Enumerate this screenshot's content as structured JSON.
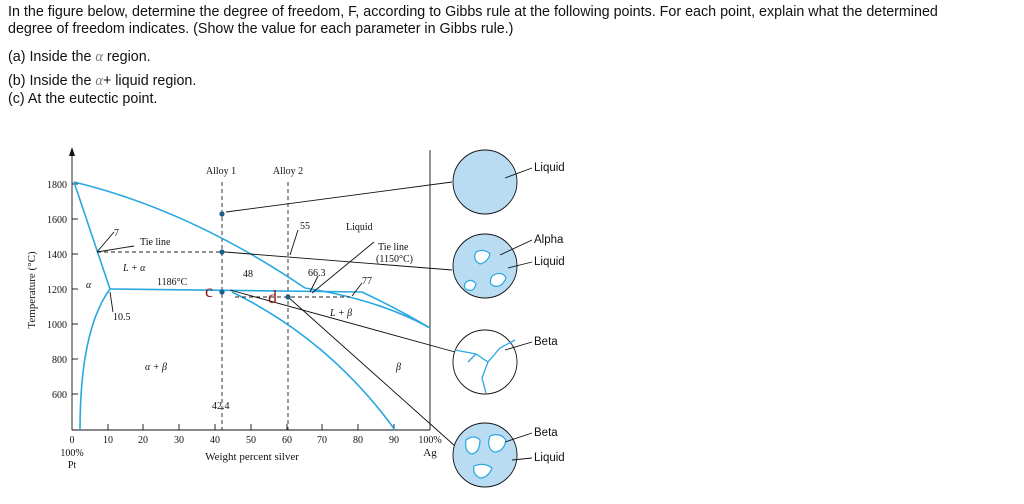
{
  "question": {
    "line1": "In the figure below, determine the degree of freedom, F, according to Gibbs rule at the following points. For each point, explain what the determined",
    "line2": "degree of freedom indicates. (Show the value for each parameter in Gibbs rule.)",
    "a_prefix": "(a) Inside the ",
    "a_symbol": "α",
    "a_suffix": " region.",
    "b_prefix": "(b) Inside the ",
    "b_symbol": "α",
    "b_suffix": "+ liquid region.",
    "c": "(c) At the eutectic point."
  },
  "figure": {
    "ylabel": "Temperature (°C)",
    "xlabel": "Weight percent silver",
    "xlabel_left": "0",
    "left_end": [
      "100%",
      "Pt"
    ],
    "right_end": [
      "100%",
      "Ag"
    ],
    "yticks": [
      "1800",
      "1600",
      "1400",
      "1200",
      "1000",
      "800",
      "600"
    ],
    "xticks": [
      "10",
      "20",
      "30",
      "40",
      "50",
      "60",
      "70",
      "80",
      "90"
    ],
    "alloy1": "Alloy 1",
    "alloy2": "Alloy 2",
    "liquid": "Liquid",
    "tie_line": "Tie line",
    "tie_line_right": [
      "Tie line",
      "(1150°C)"
    ],
    "L_alpha": "L + α",
    "L_beta": "L + β",
    "alpha": "α",
    "alpha_beta": "α + β",
    "beta": "β",
    "eutectic_temp": "1186°C",
    "c_mark": "c",
    "d_mark": "d",
    "v7": "7",
    "v10_5": "10.5",
    "v42_4": "42.4",
    "v48": "48",
    "v55": "55",
    "v66_3": "66.3",
    "v77": "77",
    "micro_labels": {
      "liquid1": "Liquid",
      "alpha": "Alpha",
      "liquid2": "Liquid",
      "beta1": "Beta",
      "beta2": "Beta",
      "liquid3": "Liquid"
    }
  }
}
